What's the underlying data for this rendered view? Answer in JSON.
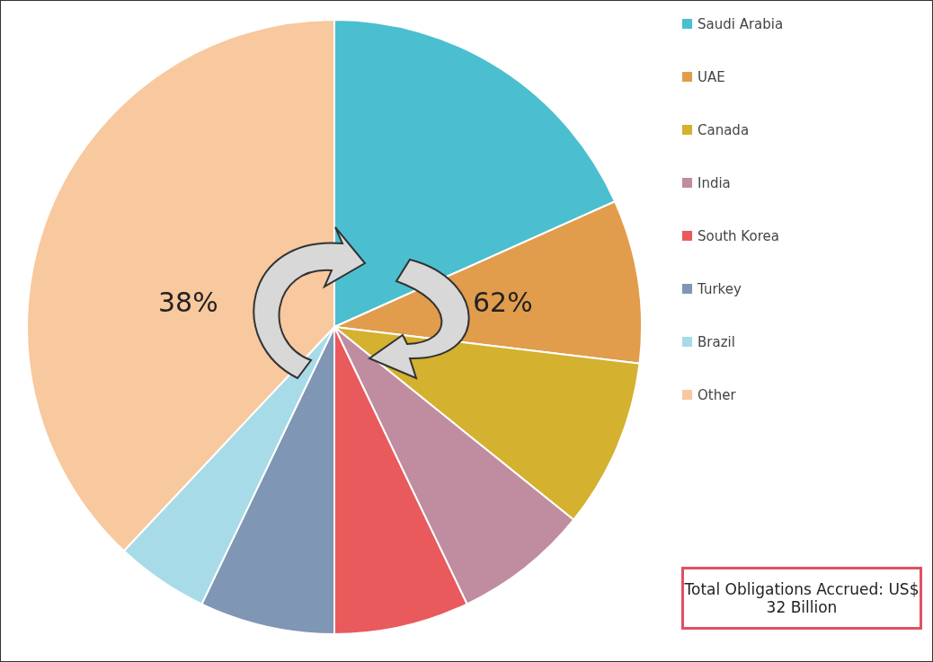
{
  "chart_data": {
    "type": "pie",
    "categories": [
      "Saudi Arabia",
      "UAE",
      "Canada",
      "India",
      "South Korea",
      "Turkey",
      "Brazil",
      "Other"
    ],
    "values": [
      18.3,
      8.6,
      8.9,
      7.1,
      7.1,
      7.1,
      4.9,
      38
    ],
    "colors": [
      "#4bbfcf",
      "#e19c4c",
      "#d4b12e",
      "#c08c9f",
      "#e85a5c",
      "#7f96b4",
      "#a7dbe8",
      "#f8c89e"
    ],
    "legend": "right",
    "annotations": [
      "38%",
      "62%",
      "Total Obligations Accrued: US$ 32 Billion"
    ]
  }
}
